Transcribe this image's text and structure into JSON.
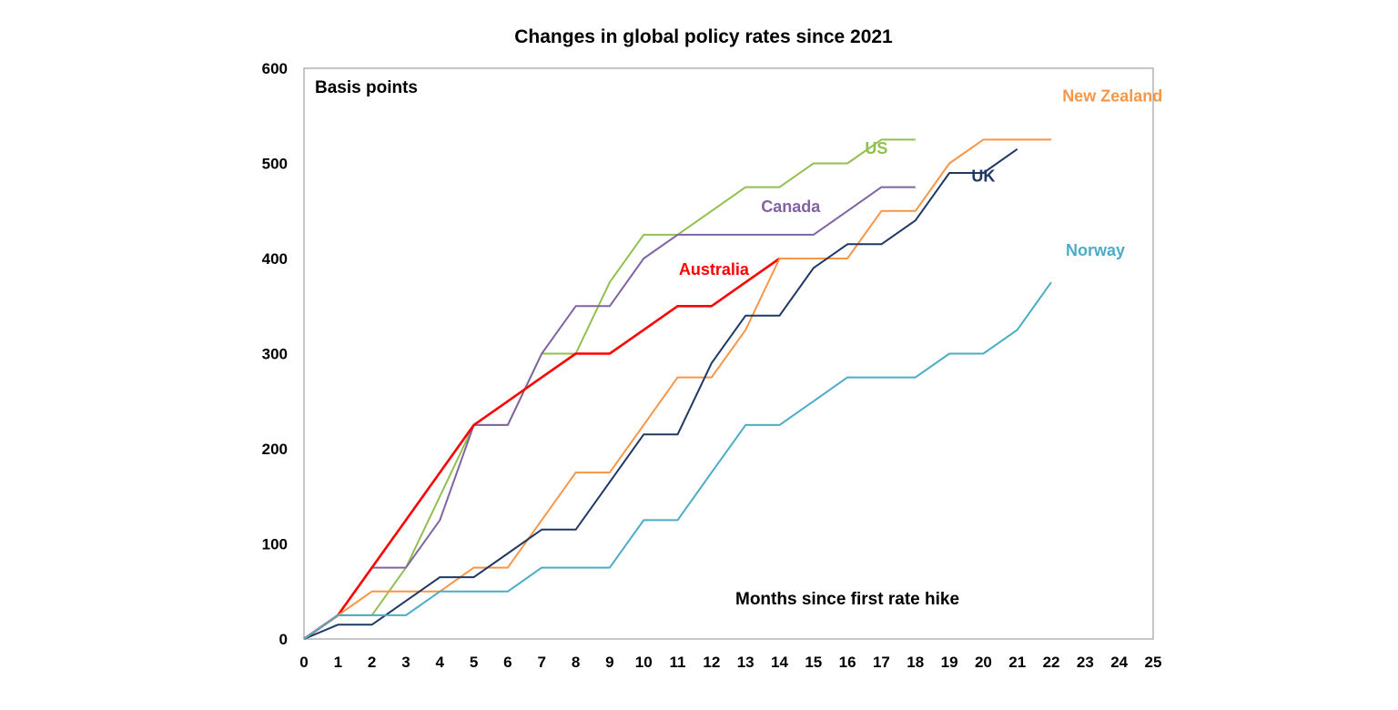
{
  "chart_data": {
    "type": "line",
    "title": "Changes in global policy rates since 2021",
    "ylabel": "Basis points",
    "xlabel": "Months since first rate hike",
    "xlim": [
      0,
      25
    ],
    "ylim": [
      0,
      600
    ],
    "x_ticks": [
      0,
      1,
      2,
      3,
      4,
      5,
      6,
      7,
      8,
      9,
      10,
      11,
      12,
      13,
      14,
      15,
      16,
      17,
      18,
      19,
      20,
      21,
      22,
      23,
      24,
      25
    ],
    "y_ticks": [
      0,
      100,
      200,
      300,
      400,
      500,
      600
    ],
    "grid": false,
    "legend": "inline labels",
    "series": [
      {
        "name": "US",
        "label": "US",
        "color": "#92c050",
        "x": [
          0,
          1,
          2,
          3,
          4,
          5,
          6,
          7,
          8,
          9,
          10,
          11,
          12,
          13,
          14,
          15,
          16,
          17,
          18
        ],
        "values": [
          0,
          25,
          25,
          75,
          150,
          225,
          225,
          300,
          300,
          375,
          425,
          425,
          450,
          475,
          475,
          500,
          500,
          525,
          525
        ]
      },
      {
        "name": "Canada",
        "label": "Canada",
        "color": "#8064a2",
        "x": [
          0,
          1,
          2,
          3,
          4,
          5,
          6,
          7,
          8,
          9,
          10,
          11,
          12,
          13,
          14,
          15,
          16,
          17,
          18
        ],
        "values": [
          0,
          25,
          75,
          75,
          125,
          225,
          225,
          300,
          350,
          350,
          400,
          425,
          425,
          425,
          425,
          425,
          450,
          475,
          475
        ]
      },
      {
        "name": "Australia",
        "label": "Australia",
        "color": "#ff0000",
        "x": [
          0,
          1,
          2,
          3,
          4,
          5,
          6,
          7,
          8,
          9,
          10,
          11,
          12,
          13,
          14
        ],
        "values": [
          0,
          25,
          75,
          125,
          175,
          225,
          250,
          275,
          300,
          300,
          325,
          350,
          350,
          375,
          400
        ]
      },
      {
        "name": "New Zealand",
        "label": "New Zealand",
        "color": "#f79646",
        "x": [
          0,
          1,
          2,
          3,
          4,
          5,
          6,
          7,
          8,
          9,
          10,
          11,
          12,
          13,
          14,
          15,
          16,
          17,
          18,
          19,
          20,
          21,
          22
        ],
        "values": [
          0,
          25,
          50,
          50,
          50,
          75,
          75,
          125,
          175,
          175,
          225,
          275,
          275,
          325,
          400,
          400,
          400,
          450,
          450,
          500,
          525,
          525,
          525
        ]
      },
      {
        "name": "UK",
        "label": "UK",
        "color": "#1f3864",
        "x": [
          0,
          1,
          2,
          3,
          4,
          5,
          6,
          7,
          8,
          9,
          10,
          11,
          12,
          13,
          14,
          15,
          16,
          17,
          18,
          19,
          20,
          21
        ],
        "values": [
          0,
          15,
          15,
          40,
          65,
          65,
          90,
          115,
          115,
          165,
          215,
          215,
          290,
          340,
          340,
          390,
          415,
          415,
          440,
          490,
          490,
          515
        ]
      },
      {
        "name": "Norway",
        "label": "Norway",
        "color": "#4bacc6",
        "x": [
          0,
          1,
          2,
          3,
          4,
          5,
          6,
          7,
          8,
          9,
          10,
          11,
          12,
          13,
          14,
          15,
          16,
          17,
          18,
          19,
          20,
          21,
          22
        ],
        "values": [
          0,
          25,
          25,
          25,
          50,
          50,
          50,
          75,
          75,
          75,
          125,
          125,
          175,
          225,
          225,
          250,
          275,
          275,
          275,
          300,
          300,
          325,
          375
        ]
      }
    ]
  }
}
